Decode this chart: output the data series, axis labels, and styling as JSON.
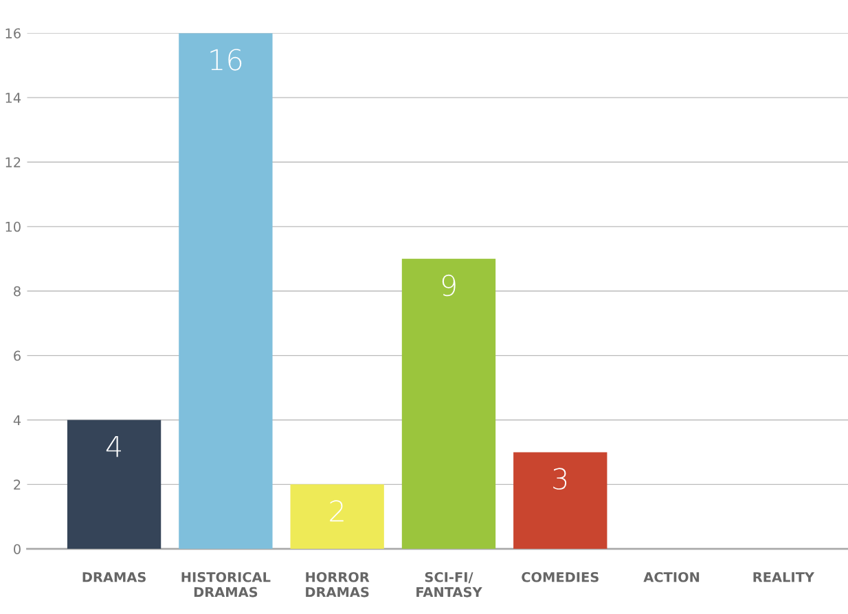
{
  "chart_data": {
    "type": "bar",
    "categories": [
      "DRAMAS",
      "HISTORICAL\nDRAMAS",
      "HORROR\nDRAMAS",
      "SCI-FI/\nFANTASY",
      "COMEDIES",
      "ACTION",
      "REALITY"
    ],
    "values": [
      4,
      16,
      2,
      9,
      3,
      0,
      0
    ],
    "colors": [
      "#354458",
      "#7fbfdc",
      "#eeea57",
      "#9bc53d",
      "#c9452f",
      "#999999",
      "#999999"
    ],
    "value_labels": [
      "4",
      "16",
      "2",
      "9",
      "3",
      null,
      null
    ],
    "ylim": [
      0,
      16
    ],
    "yticks": [
      0,
      2,
      4,
      6,
      8,
      10,
      12,
      14,
      16
    ],
    "grid": "y"
  }
}
